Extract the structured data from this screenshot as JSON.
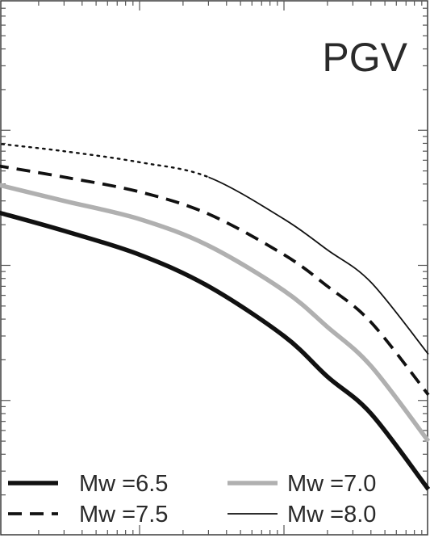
{
  "chart_data": {
    "type": "line",
    "title": "PGV",
    "xlabel": "",
    "ylabel": "",
    "xscale": "log",
    "yscale": "log",
    "xlim": [
      1,
      1000
    ],
    "ylim": [
      0.1,
      1000
    ],
    "grid": false,
    "legend_placement": "bottom",
    "series": [
      {
        "name": "Mw =6.5",
        "color": "#111111",
        "dash": "solid",
        "weight": "thick",
        "x": [
          1,
          3,
          10,
          30,
          100,
          200,
          400,
          1000
        ],
        "y": [
          25,
          18,
          12,
          7,
          3,
          1.5,
          0.8,
          0.22
        ]
      },
      {
        "name": "Mw =7.0",
        "color": "#b0b0b0",
        "dash": "solid",
        "weight": "thick",
        "x": [
          1,
          3,
          10,
          30,
          100,
          200,
          400,
          1000
        ],
        "y": [
          40,
          30,
          22,
          14,
          6.5,
          3.5,
          1.8,
          0.5
        ]
      },
      {
        "name": "Mw =7.5",
        "color": "#111111",
        "dash": "dashed",
        "weight": "medium",
        "x": [
          1,
          3,
          10,
          30,
          100,
          200,
          400,
          1000
        ],
        "y": [
          55,
          45,
          35,
          24,
          12,
          7,
          3.8,
          1.1
        ]
      },
      {
        "name": "Mw =8.0",
        "color": "#111111",
        "dash": "dotted-then-solid",
        "weight": "thin",
        "x": [
          1,
          3,
          10,
          30,
          100,
          200,
          400,
          1000
        ],
        "y": [
          80,
          70,
          58,
          45,
          22,
          13,
          7.5,
          2.2
        ]
      }
    ]
  }
}
